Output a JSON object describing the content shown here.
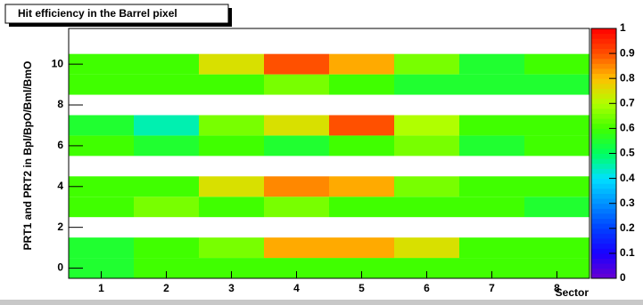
{
  "chart_data": {
    "type": "heatmap",
    "title": "Hit efficiency in the Barrel pixel",
    "x_label": "Sector",
    "y_label": "PRT1 and PRT2 in Bpl/BpO/Bml/BmO",
    "x": [
      1,
      2,
      3,
      4,
      5,
      6,
      7,
      8
    ],
    "y": [
      0,
      1,
      3,
      4,
      6,
      7,
      9,
      10
    ],
    "z": [
      [
        0.55,
        0.6,
        0.6,
        0.6,
        0.6,
        0.6,
        0.6,
        0.6
      ],
      [
        0.55,
        0.6,
        0.65,
        0.82,
        0.82,
        0.75,
        0.6,
        0.6
      ],
      [
        0.6,
        0.65,
        0.6,
        0.65,
        0.6,
        0.6,
        0.6,
        0.55
      ],
      [
        0.6,
        0.6,
        0.75,
        0.85,
        0.82,
        0.65,
        0.6,
        0.6
      ],
      [
        0.6,
        0.55,
        0.6,
        0.55,
        0.6,
        0.65,
        0.55,
        0.6
      ],
      [
        0.55,
        0.45,
        0.65,
        0.75,
        0.9,
        0.7,
        0.6,
        0.6
      ],
      [
        0.6,
        0.6,
        0.6,
        0.65,
        0.6,
        0.55,
        0.55,
        0.55
      ],
      [
        0.6,
        0.6,
        0.75,
        0.9,
        0.82,
        0.65,
        0.55,
        0.6
      ]
    ],
    "xlim": [
      0.5,
      8.5
    ],
    "ylim": [
      -0.5,
      11.75
    ],
    "xticks": [
      1,
      2,
      3,
      4,
      5,
      6,
      7,
      8
    ],
    "yticks": [
      0,
      2,
      4,
      6,
      8,
      10
    ],
    "zlim": [
      0,
      1
    ],
    "zticks": [
      0,
      0.1,
      0.2,
      0.3,
      0.4,
      0.5,
      0.6,
      0.7,
      0.8,
      0.9,
      1
    ],
    "colorscale": [
      "#6a00d0",
      "#1a00ff",
      "#0040ff",
      "#0090ff",
      "#00e0ff",
      "#00ff60",
      "#40ff00",
      "#b0ff00",
      "#ffc000",
      "#ff5000",
      "#ff0000"
    ]
  }
}
